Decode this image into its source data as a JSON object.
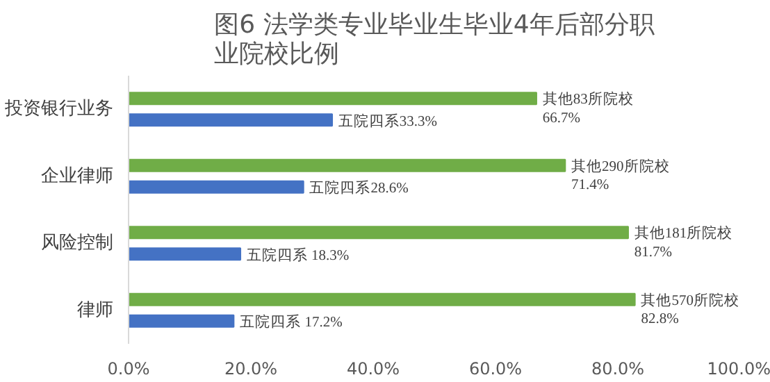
{
  "chart_data": {
    "type": "bar",
    "orientation": "horizontal",
    "title": "图6 法学类专业毕业生毕业4年后部分职业院校比例",
    "categories": [
      "投资银行业务",
      "企业律师",
      "风险控制",
      "律师"
    ],
    "series": [
      {
        "color": "#70ad47",
        "values": [
          66.7,
          71.4,
          81.7,
          82.8
        ],
        "value_labels": [
          "其他83所院校\n66.7%",
          "其他290所院校\n71.4%",
          "其他181所院校\n81.7%",
          "其他570所院校\n82.8%"
        ]
      },
      {
        "color": "#4472c4",
        "values": [
          33.3,
          28.6,
          18.3,
          17.2
        ],
        "value_labels": [
          "五院四系33.3%",
          "五院四系28.6%",
          "五院四系 18.3%",
          "五院四系 17.2%"
        ]
      }
    ],
    "xlim": [
      0,
      100
    ],
    "xticks": [
      {
        "value": 0,
        "label": "0.0%"
      },
      {
        "value": 20,
        "label": "20.0%"
      },
      {
        "value": 40,
        "label": "40.0%"
      },
      {
        "value": 60,
        "label": "60.0%"
      },
      {
        "value": 80,
        "label": "80.0%"
      },
      {
        "value": 100,
        "label": "100.0%"
      }
    ],
    "grid": false
  }
}
